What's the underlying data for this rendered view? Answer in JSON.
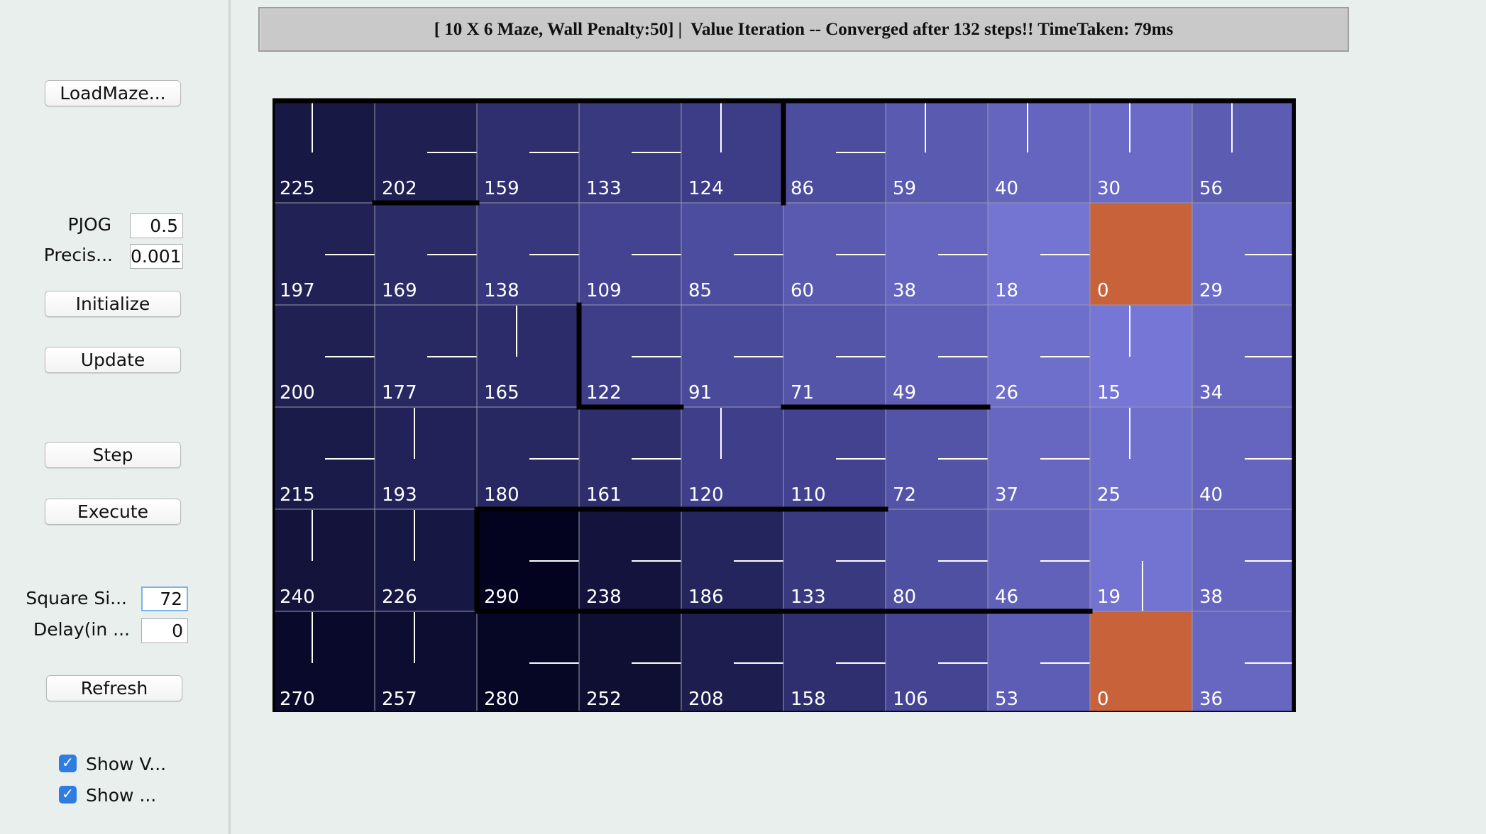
{
  "sidebar": {
    "load_maze": "LoadMaze...",
    "pjog_label": "PJOG",
    "pjog_value": "0.5",
    "precision_label": "Precis...",
    "precision_value": "0.001",
    "initialize": "Initialize",
    "update": "Update",
    "step": "Step",
    "execute": "Execute",
    "square_size_label": "Square Si...",
    "square_size_value": "72",
    "delay_label": "Delay(in ...",
    "delay_value": "0",
    "refresh": "Refresh",
    "show_values_label": "Show V...",
    "show_values_checked": true,
    "show_policy_label": "Show ...",
    "show_policy_checked": true
  },
  "status": {
    "text": "[ 10 X 6 Maze, Wall Penalty:50] |  Value Iteration -- Converged after 132 steps!! TimeTaken: 79ms"
  },
  "maze": {
    "cols": 10,
    "rows": 6,
    "values": [
      [
        225,
        202,
        159,
        133,
        124,
        86,
        59,
        40,
        30,
        56
      ],
      [
        197,
        169,
        138,
        109,
        85,
        60,
        38,
        18,
        0,
        29
      ],
      [
        200,
        177,
        165,
        122,
        91,
        71,
        49,
        26,
        15,
        34
      ],
      [
        215,
        193,
        180,
        161,
        120,
        110,
        72,
        37,
        25,
        40
      ],
      [
        240,
        226,
        290,
        238,
        186,
        133,
        80,
        46,
        19,
        38
      ],
      [
        270,
        257,
        280,
        252,
        208,
        158,
        106,
        53,
        0,
        36
      ]
    ],
    "policy": [
      [
        "up",
        "right",
        "right",
        "right",
        "up",
        "right",
        "up",
        "up",
        "up",
        "up"
      ],
      [
        "right",
        "right",
        "right",
        "right",
        "right",
        "right",
        "right",
        "right",
        "goal",
        "right"
      ],
      [
        "right",
        "right",
        "up",
        "right",
        "right",
        "right",
        "right",
        "right",
        "up",
        "right"
      ],
      [
        "right",
        "up",
        "right",
        "right",
        "up",
        "right",
        "right",
        "right",
        "up",
        "right"
      ],
      [
        "up",
        "up",
        "right",
        "right",
        "right",
        "right",
        "right",
        "right",
        "down",
        "right"
      ],
      [
        "up",
        "up",
        "right",
        "right",
        "right",
        "right",
        "right",
        "right",
        "goal",
        "right"
      ]
    ],
    "goal_color": "#c8623a",
    "low_value_color": "#8a8aee",
    "high_value_color": "#03031a",
    "policy_line_color": "#ffffff",
    "wall_color": "#000000"
  }
}
